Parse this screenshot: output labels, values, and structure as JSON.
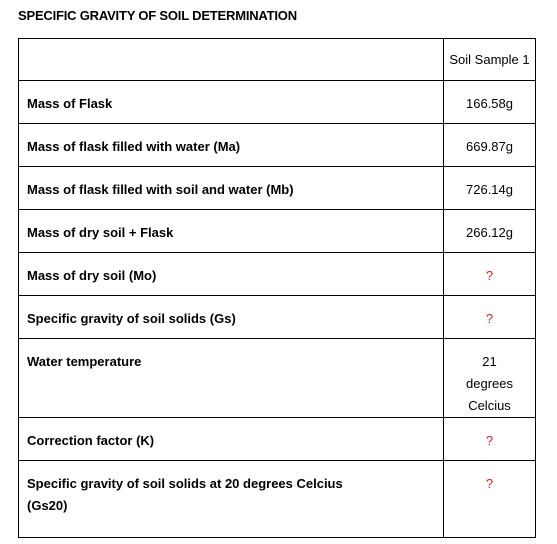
{
  "header": {
    "title": "SPECIFIC GRAVITY OF SOIL DETERMINATION"
  },
  "table": {
    "column_header": "Soil Sample 1",
    "rows": [
      [
        "Mass of Flask",
        "166.58g"
      ],
      [
        "Mass of flask filled with water (Ma)",
        "669.87g"
      ],
      [
        "Mass of flask filled with soil and water (Mb)",
        "726.14g"
      ],
      [
        "Mass of dry soil + Flask",
        "266.12g"
      ],
      [
        "Mass of dry soil (Mo)",
        "?"
      ],
      [
        "Specific gravity of soil solids (Gs)",
        "?"
      ],
      [
        "Water temperature",
        "21 degrees Celcius"
      ],
      [
        "Correction factor (K)",
        "?"
      ],
      [
        "Specific gravity of soil solids at 20 degrees Celcius (Gs20)",
        "?"
      ]
    ]
  }
}
